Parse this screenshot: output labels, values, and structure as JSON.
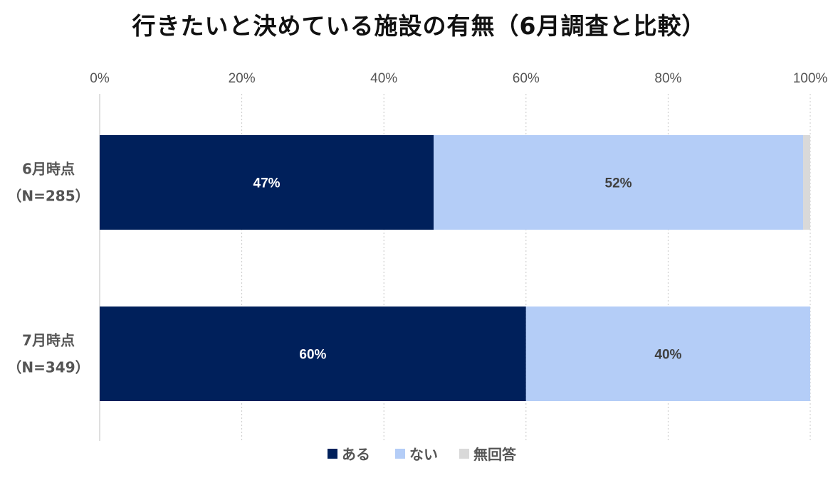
{
  "chart_data": {
    "type": "bar",
    "orientation": "horizontal",
    "stacked": true,
    "normalized": true,
    "title": "行きたいと決めている施設の有無（6月調査と比較）",
    "categories": [
      [
        "6月時点",
        "（N=285）"
      ],
      [
        "7月時点",
        "（N=349）"
      ]
    ],
    "series": [
      {
        "name": "ある",
        "color": "#00205b",
        "label_color": "#ffffff",
        "values": [
          47,
          60
        ],
        "labels": [
          "47%",
          "60%"
        ]
      },
      {
        "name": "ない",
        "color": "#b4cdf7",
        "label_color": "#404040",
        "values": [
          52,
          40
        ],
        "labels": [
          "52%",
          "40%"
        ]
      },
      {
        "name": "無回答",
        "color": "#d9d9d9",
        "label_color": "#404040",
        "values": [
          1,
          0
        ],
        "labels": [
          "",
          ""
        ]
      }
    ],
    "x_ticks": [
      "0%",
      "20%",
      "40%",
      "60%",
      "80%",
      "100%"
    ],
    "xlim": [
      0,
      100
    ],
    "grid": "vertical-dotted",
    "legend": "bottom-center"
  }
}
